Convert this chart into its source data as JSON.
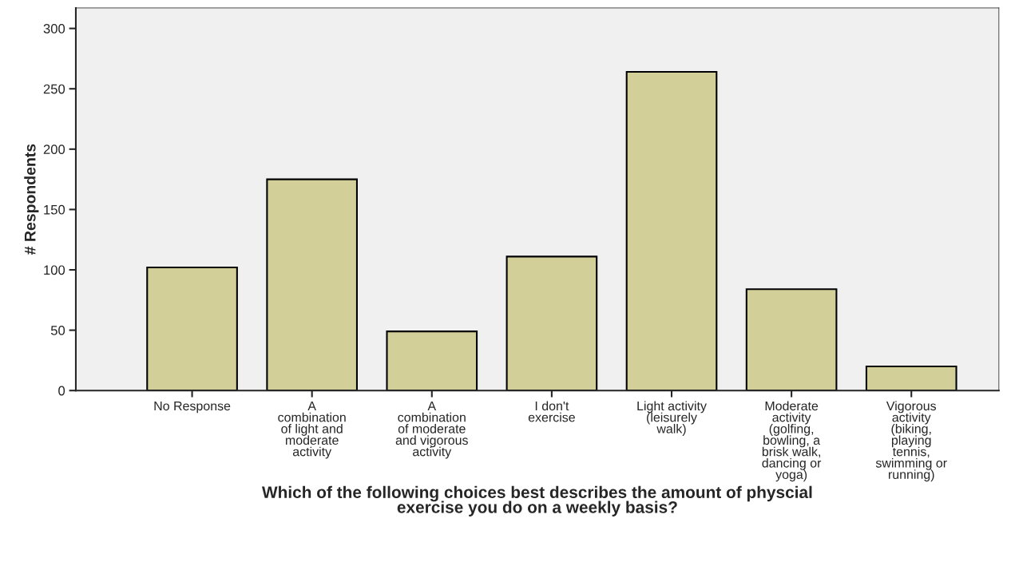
{
  "chart_data": {
    "type": "bar",
    "xlabel": "Which of the following choices best describes the amount of physcial\nexercise you do on a weekly basis?",
    "ylabel": "# Respondents",
    "categories": [
      "No Response",
      "A\ncombination\nof light and\nmoderate\nactivity",
      "A\ncombination\nof moderate\nand vigorous\nactivity",
      "I don't\nexercise",
      "Light activity\n(leisurely\nwalk)",
      "Moderate\nactivity\n(golfing,\nbowling, a\nbrisk walk,\ndancing or\nyoga)",
      "Vigorous\nactivity\n(biking,\nplaying\ntennis,\nswimming or\nrunning)"
    ],
    "values": [
      102,
      175,
      49,
      111,
      264,
      84,
      20
    ],
    "color": "#d3cf98",
    "ylim": [
      0,
      317
    ],
    "yticks": [
      0,
      50,
      100,
      150,
      200,
      250,
      300
    ],
    "grid": false
  }
}
